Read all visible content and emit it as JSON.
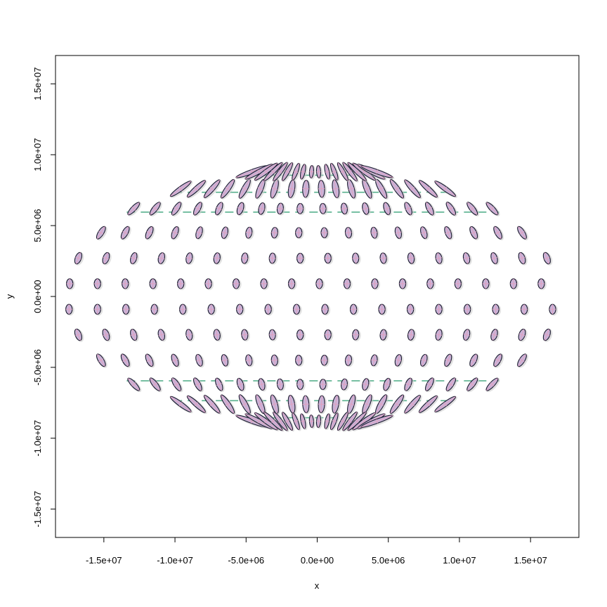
{
  "chart_data": {
    "type": "scatter",
    "title": "",
    "xlabel": "x",
    "ylabel": "y",
    "xlim": [
      -18400000,
      18400000
    ],
    "ylim": [
      -17000000,
      17000000
    ],
    "grid": false,
    "x_ticks": [
      -15000000,
      -10000000,
      -5000000,
      0,
      5000000,
      10000000,
      15000000
    ],
    "x_tick_labels": [
      "-1.5e+07",
      "-1.0e+07",
      "-5.0e+06",
      "0.0e+00",
      "5.0e+06",
      "1.0e+07",
      "1.5e+07"
    ],
    "y_ticks": [
      -15000000,
      -10000000,
      -5000000,
      0,
      5000000,
      10000000,
      15000000
    ],
    "y_tick_labels": [
      "-1.5e+07",
      "-1.0e+07",
      "-5.0e+06",
      "0.0e+00",
      "5.0e+06",
      "1.0e+07",
      "1.5e+07"
    ],
    "rows": [
      {
        "y": 900000,
        "x": [
          -17400000,
          -15450000,
          -13500000,
          -11550000,
          -9600000,
          -7650000,
          -5700000,
          -3750000,
          -1800000,
          150000,
          2100000,
          4050000,
          6000000,
          7950000,
          9900000,
          11850000,
          13800000,
          15750000
        ],
        "xs": [
          -17450000,
          -15450000,
          -13450000,
          -11450000,
          -9450000,
          -7450000,
          -5450000,
          -3450000,
          -1450000,
          550000,
          2550000,
          4550000,
          6550000,
          8550000,
          10550000,
          12550000,
          14550000,
          16550000
        ],
        "tilt": 0
      },
      {
        "y": -900000,
        "x": [
          -17450000,
          -15450000,
          -13450000,
          -11450000,
          -9450000,
          -7450000,
          -5450000,
          -3450000,
          -1450000,
          550000,
          2550000,
          4550000,
          6550000,
          8550000,
          10550000,
          12550000,
          14550000,
          16550000
        ],
        "tilt": 0
      },
      {
        "y": 2700000,
        "x": [
          -16800000,
          -14850000,
          -12900000,
          -10950000,
          -9000000,
          -7050000,
          -5100000,
          -3150000,
          -1200000,
          750000,
          2700000,
          4650000,
          6600000,
          8550000,
          10500000,
          12450000,
          14400000,
          16150000
        ],
        "tilt": 1
      },
      {
        "y": -2700000,
        "x": [
          -16800000,
          -14850000,
          -12900000,
          -10950000,
          -9000000,
          -7050000,
          -5100000,
          -3150000,
          -1200000,
          750000,
          2700000,
          4650000,
          6600000,
          8550000,
          10500000,
          12450000,
          14400000,
          16150000
        ],
        "tilt": 1
      },
      {
        "y": 4500000,
        "x": [
          -15200000,
          -13500000,
          -11800000,
          -10000000,
          -8300000,
          -6500000,
          -4800000,
          -3000000,
          -1300000,
          500000,
          2200000,
          4000000,
          5700000,
          7500000,
          9200000,
          11000000,
          12700000,
          14400000
        ],
        "tilt": 2
      },
      {
        "y": -4500000,
        "x": [
          -15200000,
          -13500000,
          -11800000,
          -10000000,
          -8300000,
          -6500000,
          -4800000,
          -3000000,
          -1300000,
          500000,
          2200000,
          4000000,
          5700000,
          7500000,
          9200000,
          11000000,
          12700000,
          14400000
        ],
        "tilt": 2
      },
      {
        "y": 6200000,
        "x": [
          -12900000,
          -11400000,
          -9900000,
          -8400000,
          -6900000,
          -5400000,
          -3900000,
          -2600000,
          -1200000,
          400000,
          1900000,
          3400000,
          4900000,
          6400000,
          7900000,
          9400000,
          10900000,
          12300000
        ],
        "tilt": 3
      },
      {
        "y": -6200000,
        "x": [
          -12900000,
          -11400000,
          -9900000,
          -8400000,
          -6900000,
          -5400000,
          -3900000,
          -2600000,
          -1200000,
          400000,
          1900000,
          3400000,
          4900000,
          6400000,
          7900000,
          9400000,
          10900000,
          12300000
        ],
        "tilt": 3
      },
      {
        "y": 7600000,
        "x": [
          -9600000,
          -8500000,
          -7400000,
          -6300000,
          -5100000,
          -4000000,
          -3000000,
          -1800000,
          -800000,
          300000,
          1300000,
          2400000,
          3500000,
          4500000,
          5600000,
          6700000,
          7800000,
          9000000
        ],
        "tilt": 4
      },
      {
        "y": -7600000,
        "x": [
          -9600000,
          -8500000,
          -7400000,
          -6300000,
          -5100000,
          -4000000,
          -3000000,
          -1800000,
          -800000,
          300000,
          1300000,
          2400000,
          3500000,
          4500000,
          5600000,
          6700000,
          7800000,
          9000000
        ],
        "tilt": 4
      },
      {
        "y": 8800000,
        "x": [
          -4600000,
          -4100000,
          -3600000,
          -3100000,
          -2600000,
          -2100000,
          -1500000,
          -1000000,
          -400000,
          100000,
          700000,
          1200000,
          1800000,
          2300000,
          2800000,
          3300000,
          3800000,
          4200000
        ],
        "tilt": 5
      },
      {
        "y": -8800000,
        "x": [
          -4600000,
          -4100000,
          -3600000,
          -3100000,
          -2600000,
          -2100000,
          -1500000,
          -1000000,
          -400000,
          100000,
          700000,
          1200000,
          1800000,
          2300000,
          2800000,
          3300000,
          3800000,
          4200000
        ],
        "tilt": 5
      }
    ],
    "colors": {
      "ellipse_fill": "#c8b4d8",
      "ellipse_stroke": "#1a1a2e",
      "cross": "#e0a0c0",
      "shadow": "#c8c8c8",
      "dashes": "#3aa37a"
    }
  }
}
